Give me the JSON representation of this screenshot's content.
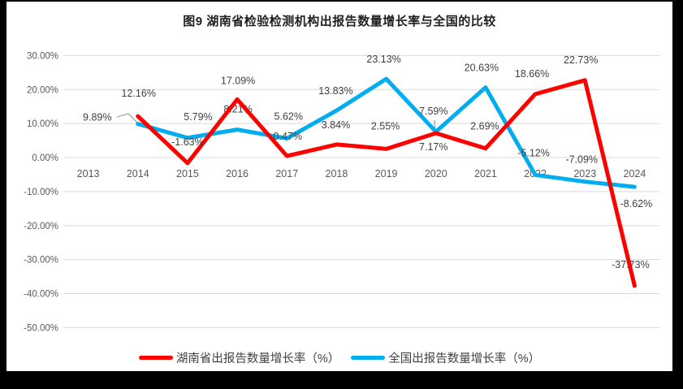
{
  "chart_data": {
    "type": "line",
    "title": "图9 湖南省检验检测机构出报告数量增长率与全国的比较",
    "xlabel": "",
    "ylabel": "",
    "grid": true,
    "legend_position": "bottom",
    "categories": [
      "2013",
      "2014",
      "2015",
      "2016",
      "2017",
      "2018",
      "2019",
      "2020",
      "2021",
      "2022",
      "2023",
      "2024"
    ],
    "y_axis": {
      "ticks": [
        "30.00%",
        "20.00%",
        "10.00%",
        "0.00%",
        "-10.00%",
        "-20.00%",
        "-30.00%",
        "-40.00%",
        "-50.00%"
      ],
      "max": 30,
      "min": -50,
      "step": 10
    },
    "colors": {
      "grid": "#D9D9D9",
      "axis_text": "#595959",
      "label_text": "#404040",
      "leader": "#A6A6A6"
    },
    "series": [
      {
        "id": "hunan",
        "name": "湖南省出报告数量增长率（%）",
        "color": "#FF0000",
        "points": [
          {
            "year": "2014",
            "value": 12.16,
            "label": "12.16%",
            "offset": [
              1,
              -28
            ]
          },
          {
            "year": "2015",
            "value": -1.63,
            "label": "-1.63%",
            "offset": [
              0,
              -26
            ]
          },
          {
            "year": "2016",
            "value": 17.09,
            "label": "17.09%",
            "offset": [
              1,
              -23
            ]
          },
          {
            "year": "2017",
            "value": 0.47,
            "label": "0.47%",
            "offset": [
              1,
              -24
            ]
          },
          {
            "year": "2018",
            "value": 3.84,
            "label": "3.84%",
            "offset": [
              -1,
              -24
            ]
          },
          {
            "year": "2019",
            "value": 2.55,
            "label": "2.55%",
            "offset": [
              -1,
              -28
            ]
          },
          {
            "year": "2020",
            "value": 7.17,
            "label": "7.17%",
            "offset": [
              -3,
              17
            ]
          },
          {
            "year": "2021",
            "value": 2.69,
            "label": "2.69%",
            "offset": [
              -1,
              -27
            ]
          },
          {
            "year": "2022",
            "value": 18.66,
            "label": "18.66%",
            "offset": [
              -4,
              -25
            ]
          },
          {
            "year": "2023",
            "value": 22.73,
            "label": "22.73%",
            "offset": [
              -5,
              -25
            ]
          },
          {
            "year": "2024",
            "value": -37.73,
            "label": "-37.73%",
            "offset": [
              -5,
              -26
            ],
            "behind": true
          }
        ]
      },
      {
        "id": "national",
        "name": "全国出报告数量增长率（%）",
        "color": "#00AEEF",
        "points": [
          {
            "year": "2014",
            "value": 9.89,
            "label": "9.89%",
            "offset": [
              -50,
              -8
            ]
          },
          {
            "year": "2015",
            "value": 5.79,
            "label": "5.79%",
            "offset": [
              13,
              -26
            ]
          },
          {
            "year": "2016",
            "value": 8.21,
            "label": "8.21%",
            "offset": [
              1,
              -25
            ],
            "behind": true
          },
          {
            "year": "2017",
            "value": 5.62,
            "label": "5.62%",
            "offset": [
              2,
              -27
            ]
          },
          {
            "year": "2018",
            "value": 13.83,
            "label": "13.83%",
            "offset": [
              -1,
              -24
            ]
          },
          {
            "year": "2019",
            "value": 23.13,
            "label": "23.13%",
            "offset": [
              -3,
              -24
            ]
          },
          {
            "year": "2020",
            "value": 7.59,
            "label": "7.59%",
            "offset": [
              -3,
              -25
            ]
          },
          {
            "year": "2021",
            "value": 20.63,
            "label": "20.63%",
            "offset": [
              -5,
              -24
            ]
          },
          {
            "year": "2022",
            "value": -5.12,
            "label": "-5.12%",
            "offset": [
              -2,
              -27
            ]
          },
          {
            "year": "2023",
            "value": -7.09,
            "label": "-7.09%",
            "offset": [
              -4,
              -27
            ]
          },
          {
            "year": "2024",
            "value": -8.62,
            "label": "-8.62%",
            "offset": [
              2,
              21
            ]
          }
        ]
      }
    ],
    "leader_lines": [
      {
        "for": "9.89%",
        "points": [
          [
            144,
            144
          ],
          [
            158,
            140
          ],
          [
            169,
            151
          ]
        ]
      },
      {
        "for": "7.59%",
        "points": [
          [
            535,
            148
          ],
          [
            536,
            161
          ]
        ]
      }
    ]
  }
}
